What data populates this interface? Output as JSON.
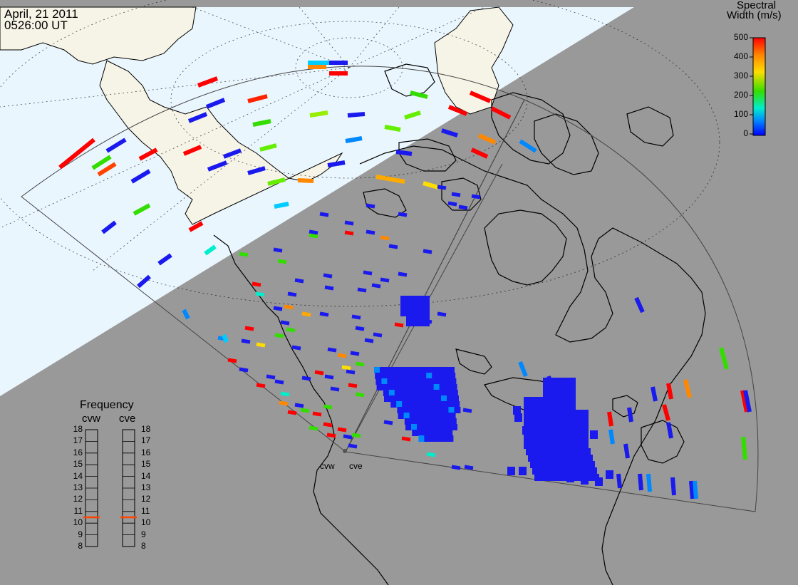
{
  "header": {
    "date": "April, 21 2011",
    "time": "0526:00 UT"
  },
  "colorbar": {
    "title_line1": "Spectral",
    "title_line2": "Width (m/s)",
    "ticks": [
      "500",
      "400",
      "300",
      "200",
      "100",
      "0"
    ],
    "range": [
      0,
      500
    ],
    "colors": [
      "#ff0000",
      "#ff8800",
      "#ffdd00",
      "#33dd00",
      "#00eecc",
      "#0088ff",
      "#0000ff"
    ]
  },
  "frequency_panel": {
    "title": "Frequency",
    "radars": [
      {
        "name": "cvw",
        "freq_mhz": 10.5
      },
      {
        "name": "cve",
        "freq_mhz": 10.5
      }
    ],
    "ticks": [
      "18",
      "17",
      "16",
      "15",
      "14",
      "13",
      "12",
      "11",
      "10",
      "9",
      "8"
    ],
    "marker_color": "#ff4400"
  },
  "radar_sites": [
    "cvw",
    "cve"
  ],
  "map_colors": {
    "night": "#999999",
    "day_ocean": "#eaf6fd",
    "day_land": "#f6f4e6"
  }
}
